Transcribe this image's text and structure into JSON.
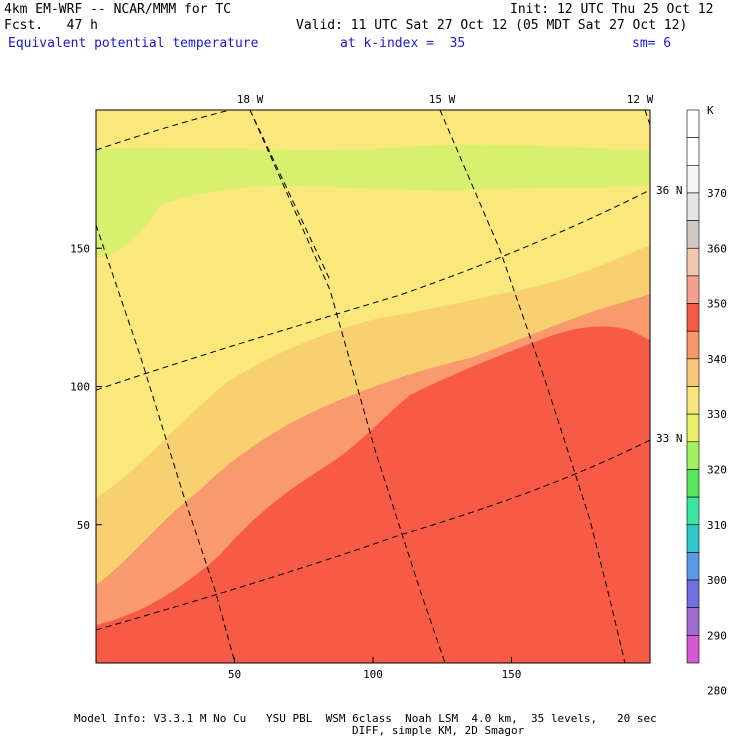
{
  "header": {
    "model": "4km EM-WRF -- NCAR/MMM for TC",
    "fcst": "Fcst.   47 h",
    "init": "Init: 12 UTC Thu 25 Oct 12",
    "valid": "Valid: 11 UTC Sat 27 Oct 12 (05 MDT Sat 27 Oct 12)",
    "field": "Equivalent potential temperature",
    "level": "at k-index =  35",
    "smooth": "sm= 6"
  },
  "footer": {
    "line1": "Model Info: V3.3.1 M No Cu   YSU PBL  WSM 6class  Noah LSM  4.0 km,  35 levels,   20 sec",
    "line2": "DIFF, simple KM, 2D Smagor"
  },
  "chart_data": {
    "type": "heatmap",
    "xlim": [
      0,
      200
    ],
    "ylim": [
      0,
      200
    ],
    "x_ticks": [
      "50",
      "100",
      "150"
    ],
    "y_ticks": [
      "50",
      "100",
      "150"
    ],
    "lon_labels": [
      "18 W",
      "15 W",
      "12 W"
    ],
    "lat_labels": [
      "36 N",
      "33 N"
    ],
    "colorbar": {
      "unit": "K",
      "labels": [
        "280",
        "290",
        "300",
        "310",
        "320",
        "330",
        "340",
        "350",
        "360",
        "370"
      ],
      "colors": [
        "#d35ad3",
        "#a06ad0",
        "#7070e0",
        "#5a9ae6",
        "#2ec8c8",
        "#3ce6a0",
        "#5ae65a",
        "#a0f060",
        "#e8f06a",
        "#f8e67c",
        "#f8c878",
        "#f89868",
        "#f85a48",
        "#f8a090",
        "#f0c8b0",
        "#d2c8c0",
        "#e6e6e6",
        "#f5f5f5",
        "#ffffff",
        "#ffffff"
      ]
    },
    "regions": [
      {
        "name": "theta-e-320-325",
        "color": "#fae87c"
      },
      {
        "name": "theta-e-325-330",
        "color": "#f8d070"
      },
      {
        "name": "theta-e-330-335",
        "color": "#f89a6e"
      },
      {
        "name": "theta-e-335-345",
        "color": "#f85a48"
      },
      {
        "name": "theta-e-315-320",
        "color": "#d8f06e"
      }
    ]
  }
}
